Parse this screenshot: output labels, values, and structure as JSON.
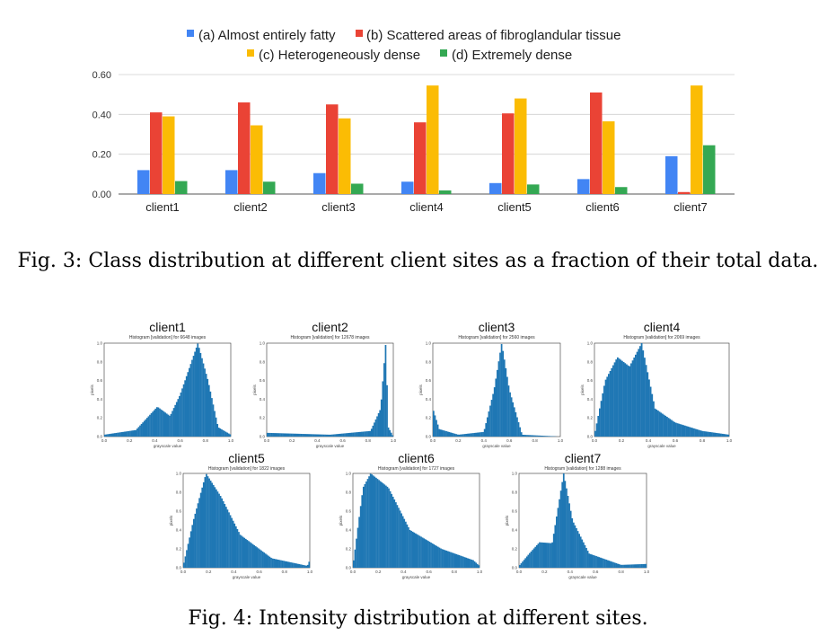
{
  "figure3": {
    "caption": "Fig. 3: Class distribution at different client sites as a fraction of their total data."
  },
  "figure4": {
    "caption": "Fig. 4: Intensity distribution at different sites.",
    "histograms": [
      {
        "title": "client1",
        "subtitle": "Histogram [validation] for 6648 images"
      },
      {
        "title": "client2",
        "subtitle": "Histogram [validation] for 12678 images"
      },
      {
        "title": "client3",
        "subtitle": "Histogram [validation] for 2560 images"
      },
      {
        "title": "client4",
        "subtitle": "Histogram [validation] for 2069 images"
      },
      {
        "title": "client5",
        "subtitle": "Histogram [validation] for 1822 images"
      },
      {
        "title": "client6",
        "subtitle": "Histogram [validation] for 1727 images"
      },
      {
        "title": "client7",
        "subtitle": "Histogram [validation] for 1288 images"
      }
    ],
    "xlabel": "grayscale value",
    "ylabel": "pixels",
    "x_ticks": [
      "0.0",
      "0.2",
      "0.4",
      "0.6",
      "0.8",
      "1.0"
    ],
    "y_ticks": [
      "0.0",
      "0.2",
      "0.4",
      "0.6",
      "0.8",
      "1.0"
    ]
  },
  "colors": {
    "a": "#4285F4",
    "b": "#EA4335",
    "c": "#FBBC04",
    "d": "#34A853",
    "hist": "#1F77B4"
  },
  "chart_data": [
    {
      "type": "bar",
      "categories": [
        "client1",
        "client2",
        "client3",
        "client4",
        "client5",
        "client6",
        "client7"
      ],
      "series": [
        {
          "name": "(a) Almost entirely fatty",
          "values": [
            0.12,
            0.12,
            0.105,
            0.062,
            0.055,
            0.075,
            0.19
          ]
        },
        {
          "name": "(b) Scattered areas of fibroglandular tissue",
          "values": [
            0.41,
            0.46,
            0.45,
            0.36,
            0.405,
            0.51,
            0.01
          ]
        },
        {
          "name": "(c) Heterogeneously dense",
          "values": [
            0.39,
            0.345,
            0.38,
            0.545,
            0.48,
            0.365,
            0.545
          ]
        },
        {
          "name": "(d) Extremely dense",
          "values": [
            0.065,
            0.062,
            0.052,
            0.018,
            0.048,
            0.035,
            0.245
          ]
        }
      ],
      "y_ticks": [
        "0.00",
        "0.20",
        "0.40",
        "0.60"
      ],
      "ylim": [
        0,
        0.6
      ],
      "grid": true,
      "legend": "top-center"
    },
    {
      "type": "bar",
      "title": "client1",
      "xlim": [
        0,
        1
      ],
      "ylim": [
        0,
        1
      ],
      "peaks": [
        [
          0.0,
          0.02
        ],
        [
          0.25,
          0.07
        ],
        [
          0.42,
          0.32
        ],
        [
          0.52,
          0.22
        ],
        [
          0.6,
          0.45
        ],
        [
          0.74,
          1.0
        ],
        [
          0.82,
          0.6
        ],
        [
          0.9,
          0.1
        ],
        [
          1.0,
          0.02
        ]
      ]
    },
    {
      "type": "bar",
      "title": "client2",
      "xlim": [
        0,
        1
      ],
      "ylim": [
        0,
        1
      ],
      "peaks": [
        [
          0.0,
          0.04
        ],
        [
          0.5,
          0.02
        ],
        [
          0.82,
          0.06
        ],
        [
          0.9,
          0.3
        ],
        [
          0.94,
          1.0
        ],
        [
          0.96,
          0.1
        ],
        [
          1.0,
          0.0
        ]
      ]
    },
    {
      "type": "bar",
      "title": "client3",
      "xlim": [
        0,
        1
      ],
      "ylim": [
        0,
        1
      ],
      "peaks": [
        [
          0.0,
          0.3
        ],
        [
          0.05,
          0.08
        ],
        [
          0.2,
          0.02
        ],
        [
          0.4,
          0.05
        ],
        [
          0.48,
          0.5
        ],
        [
          0.54,
          1.0
        ],
        [
          0.6,
          0.5
        ],
        [
          0.7,
          0.02
        ],
        [
          1.0,
          0.0
        ]
      ]
    },
    {
      "type": "bar",
      "title": "client4",
      "xlim": [
        0,
        1
      ],
      "ylim": [
        0,
        1
      ],
      "peaks": [
        [
          0.0,
          0.02
        ],
        [
          0.08,
          0.6
        ],
        [
          0.17,
          0.85
        ],
        [
          0.26,
          0.75
        ],
        [
          0.35,
          1.0
        ],
        [
          0.45,
          0.3
        ],
        [
          0.6,
          0.15
        ],
        [
          0.8,
          0.06
        ],
        [
          1.0,
          0.02
        ]
      ]
    },
    {
      "type": "bar",
      "title": "client5",
      "xlim": [
        0,
        1
      ],
      "ylim": [
        0,
        1
      ],
      "peaks": [
        [
          0.0,
          0.02
        ],
        [
          0.08,
          0.5
        ],
        [
          0.18,
          1.0
        ],
        [
          0.3,
          0.75
        ],
        [
          0.45,
          0.35
        ],
        [
          0.7,
          0.1
        ],
        [
          0.98,
          0.02
        ],
        [
          1.0,
          0.08
        ]
      ]
    },
    {
      "type": "bar",
      "title": "client6",
      "xlim": [
        0,
        1
      ],
      "ylim": [
        0,
        1
      ],
      "peaks": [
        [
          0.0,
          0.02
        ],
        [
          0.08,
          0.85
        ],
        [
          0.14,
          1.0
        ],
        [
          0.28,
          0.85
        ],
        [
          0.45,
          0.4
        ],
        [
          0.7,
          0.2
        ],
        [
          0.95,
          0.08
        ],
        [
          1.0,
          0.02
        ]
      ]
    },
    {
      "type": "bar",
      "title": "client7",
      "xlim": [
        0,
        1
      ],
      "ylim": [
        0,
        1
      ],
      "peaks": [
        [
          0.0,
          0.02
        ],
        [
          0.08,
          0.15
        ],
        [
          0.16,
          0.27
        ],
        [
          0.26,
          0.26
        ],
        [
          0.35,
          1.0
        ],
        [
          0.42,
          0.5
        ],
        [
          0.55,
          0.15
        ],
        [
          0.8,
          0.03
        ],
        [
          1.0,
          0.04
        ]
      ]
    }
  ]
}
